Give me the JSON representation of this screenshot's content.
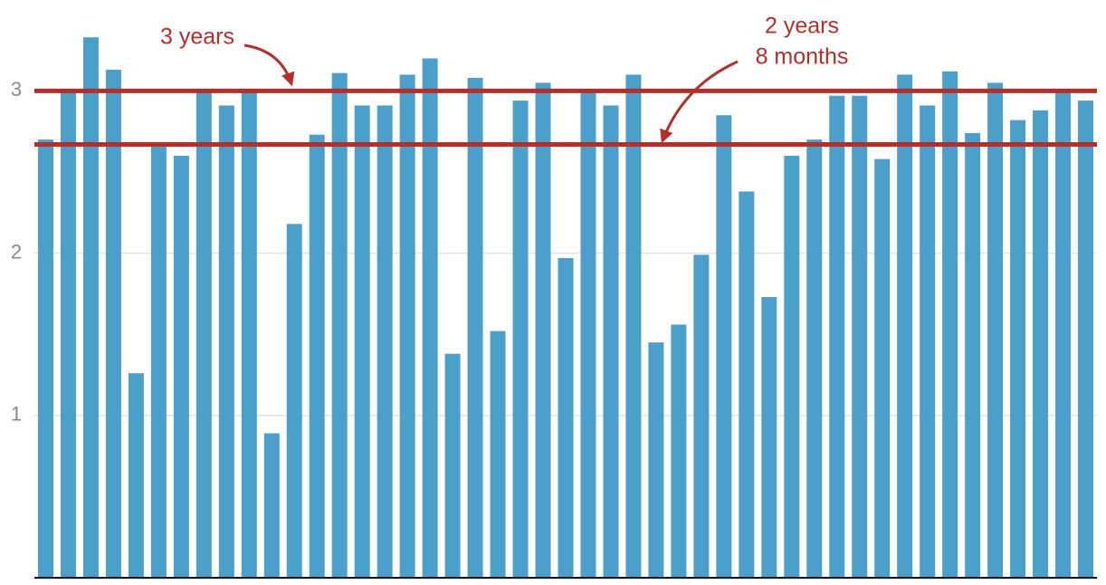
{
  "chart_data": {
    "type": "bar",
    "values": [
      2.7,
      3.0,
      3.33,
      3.13,
      1.26,
      2.67,
      2.6,
      3.0,
      2.91,
      3.0,
      0.89,
      2.18,
      2.73,
      3.11,
      2.91,
      2.91,
      3.1,
      3.2,
      1.38,
      3.08,
      1.52,
      2.94,
      3.05,
      1.97,
      3.0,
      2.91,
      3.1,
      1.45,
      1.56,
      1.99,
      2.85,
      2.38,
      1.73,
      2.6,
      2.7,
      2.97,
      2.97,
      2.58,
      3.1,
      2.91,
      3.12,
      2.74,
      3.05,
      2.82,
      2.88,
      3.0,
      2.94
    ],
    "color": "#4a9fcb",
    "ylim": [
      0,
      3.56
    ],
    "yticks": [
      1,
      2,
      3
    ],
    "grid": true,
    "reference_lines": [
      {
        "value": 3,
        "label": [
          "3 years"
        ],
        "color": "#b3302a"
      },
      {
        "value": 2.67,
        "label": [
          "2 years",
          "8 months"
        ],
        "color": "#b3302a"
      }
    ]
  }
}
